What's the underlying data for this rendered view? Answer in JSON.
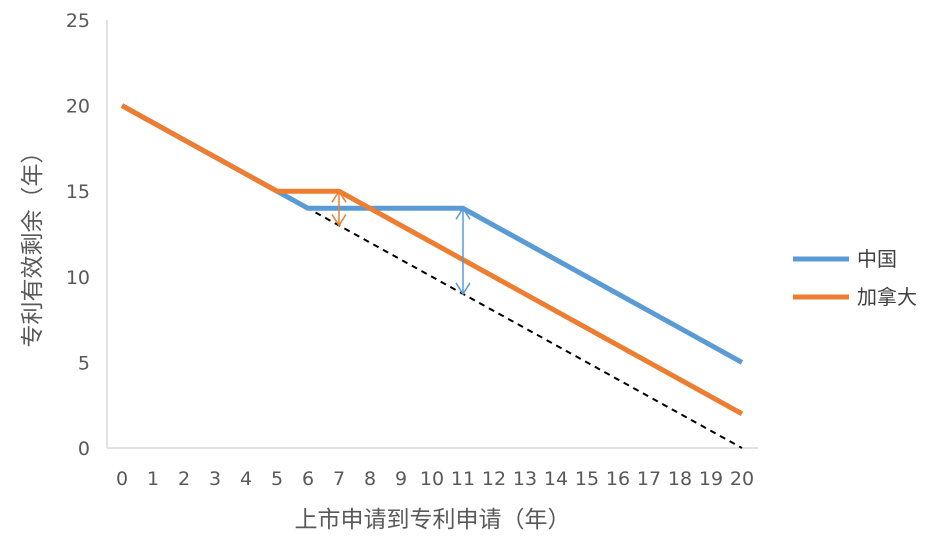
{
  "chart_data": {
    "type": "line",
    "xlabel": "上市申请到专利申请（年）",
    "ylabel": "专利有效剩余（年）",
    "x": [
      0,
      1,
      2,
      3,
      4,
      5,
      6,
      7,
      8,
      9,
      10,
      11,
      12,
      13,
      14,
      15,
      16,
      17,
      18,
      19,
      20
    ],
    "x_ticks": [
      "0",
      "1",
      "2",
      "3",
      "4",
      "5",
      "6",
      "7",
      "8",
      "9",
      "10",
      "11",
      "12",
      "13",
      "14",
      "15",
      "16",
      "17",
      "18",
      "19",
      "20"
    ],
    "xlim": [
      0,
      20
    ],
    "ylim": [
      0,
      25
    ],
    "y_ticks": [
      "0",
      "5",
      "10",
      "15",
      "20",
      "25"
    ],
    "grid": false,
    "legend": "right",
    "series": [
      {
        "name": "中国",
        "color": "#5B9BD5",
        "points": [
          [
            0,
            20
          ],
          [
            5,
            15
          ],
          [
            6,
            14
          ],
          [
            11,
            14
          ],
          [
            20,
            5
          ]
        ]
      },
      {
        "name": "加拿大",
        "color": "#ED7D31",
        "points": [
          [
            0,
            20
          ],
          [
            5,
            15
          ],
          [
            7,
            15
          ],
          [
            20,
            2
          ]
        ]
      }
    ],
    "reference_line": {
      "style": "dashed",
      "color": "#000000",
      "points": [
        [
          5,
          15
        ],
        [
          20,
          0
        ]
      ]
    },
    "annotations": [
      {
        "type": "double-arrow",
        "color": "#ED7D31",
        "x": 7,
        "y_from": 13,
        "y_to": 15
      },
      {
        "type": "double-arrow",
        "color": "#5B9BD5",
        "x": 11,
        "y_from": 9,
        "y_to": 14
      }
    ]
  }
}
